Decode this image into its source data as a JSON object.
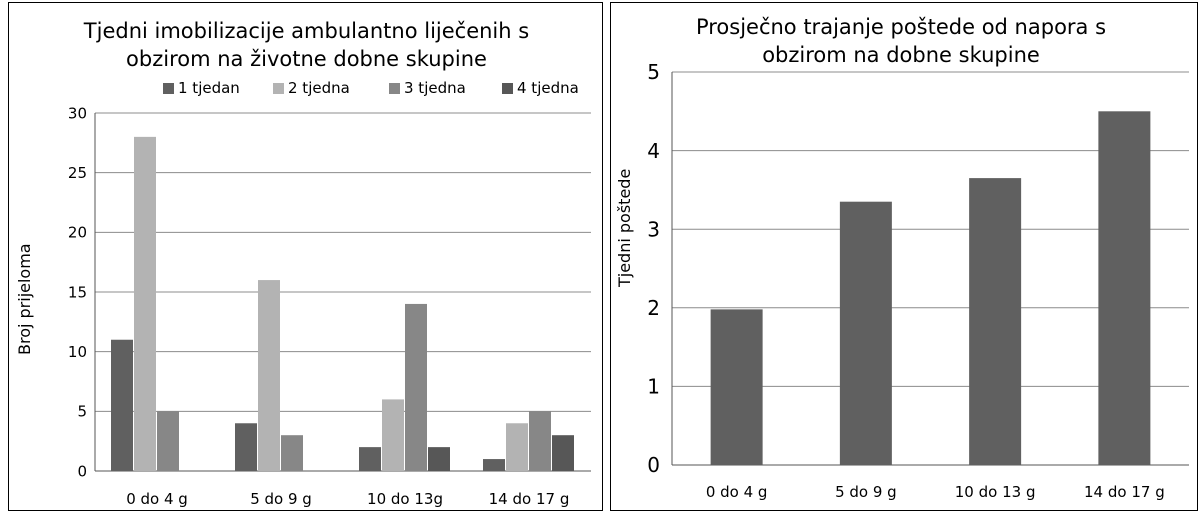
{
  "chart_data": [
    {
      "type": "bar",
      "title_line1": "Tjedni imobilizacije ambulantno liječenih s",
      "title_line2": "obzirom na životne dobne skupine",
      "xlabel": "",
      "ylabel": "Broj prijeloma",
      "ylim": [
        0,
        30
      ],
      "yticks": [
        0,
        5,
        10,
        15,
        20,
        25,
        30
      ],
      "grid": true,
      "legend": "top",
      "categories": [
        "0 do 4 g",
        "5 do 9 g",
        "10 do 13g",
        "14 do 17 g"
      ],
      "series": [
        {
          "name": "1 tjedan",
          "color": "#606060",
          "values": [
            11,
            4,
            2,
            1
          ]
        },
        {
          "name": "2 tjedna",
          "color": "#b3b3b3",
          "values": [
            28,
            16,
            6,
            4
          ]
        },
        {
          "name": "3 tjedna",
          "color": "#878787",
          "values": [
            5,
            3,
            14,
            5
          ]
        },
        {
          "name": "4 tjedna",
          "color": "#575757",
          "values": [
            0,
            0,
            2,
            3
          ]
        }
      ]
    },
    {
      "type": "bar",
      "title_line1": "Prosječno trajanje poštede od napora s",
      "title_line2": "obzirom na dobne skupine",
      "xlabel": "",
      "ylabel": "Tjedni poštede",
      "ylim": [
        0,
        5
      ],
      "yticks": [
        0,
        1,
        2,
        3,
        4,
        5
      ],
      "grid": true,
      "categories": [
        "0 do 4 g",
        "5 do 9 g",
        "10 do 13 g",
        "14 do 17 g"
      ],
      "series": [
        {
          "color": "#606060",
          "values": [
            1.98,
            3.35,
            3.65,
            4.5
          ]
        }
      ]
    }
  ]
}
